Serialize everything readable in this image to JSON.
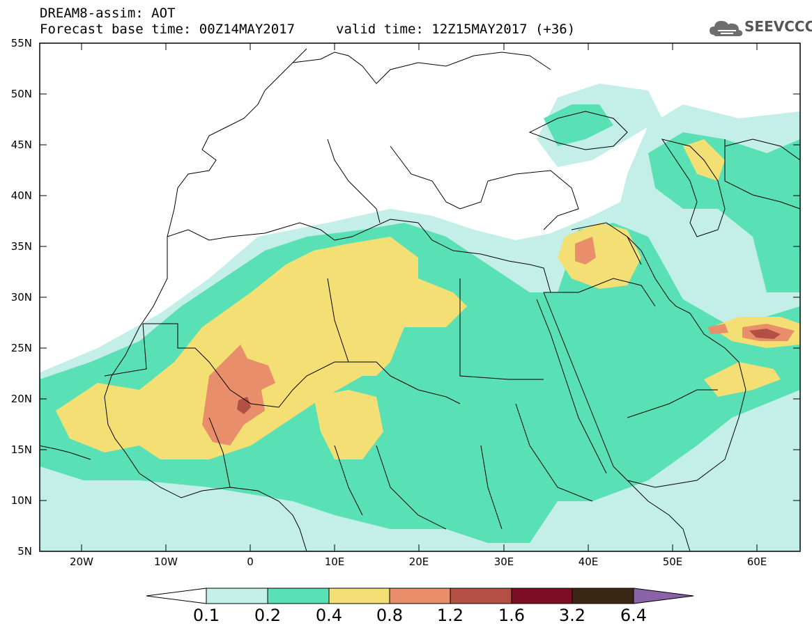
{
  "header": {
    "title": "DREAM8-assim: AOT",
    "subtitle": "Forecast base time: 00Z14MAY2017",
    "valid": "valid time: 12Z15MAY2017 (+36)"
  },
  "logo": {
    "text": "SEEVCCC",
    "icon": "cloud-icon"
  },
  "map": {
    "lat_range": [
      5,
      55
    ],
    "lon_range": [
      -25,
      65
    ],
    "lat_labels": [
      "55N",
      "50N",
      "45N",
      "40N",
      "35N",
      "30N",
      "25N",
      "20N",
      "15N",
      "10N",
      "5N"
    ],
    "lon_labels": [
      "20W",
      "10W",
      "0",
      "10E",
      "20E",
      "30E",
      "40E",
      "50E",
      "60E"
    ]
  },
  "colorbar": {
    "labels": [
      "0.1",
      "0.2",
      "0.4",
      "0.8",
      "1.2",
      "1.6",
      "3.2",
      "6.4"
    ],
    "colors": [
      "#ffffff",
      "#c4efe8",
      "#59e0b4",
      "#f3df73",
      "#e88e6a",
      "#b35044",
      "#7d0d24",
      "#3c2614",
      "#8a62a8"
    ]
  }
}
